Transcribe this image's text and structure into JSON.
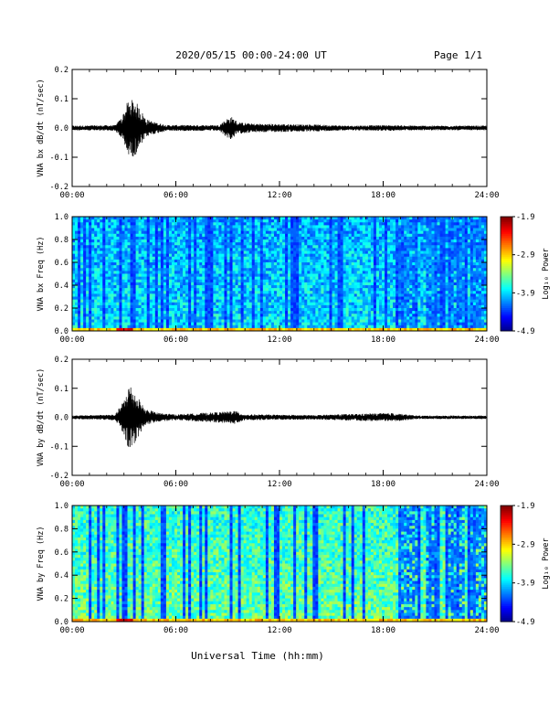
{
  "header": {
    "title": "2020/05/15  00:00-24:00 UT",
    "page": "Page 1/1"
  },
  "footer": {
    "xlabel": "Universal Time (hh:mm)"
  },
  "time_ticks": [
    "00:00",
    "06:00",
    "12:00",
    "18:00",
    "24:00"
  ],
  "colorbar": {
    "label": "Log₁₀ Power",
    "ticks": [
      "-1.9",
      "-2.9",
      "-3.9",
      "-4.9"
    ],
    "range": [
      -4.9,
      -1.9
    ]
  },
  "chart_data": [
    {
      "type": "line",
      "ylabel": "VNA bx dB/dt (nT/sec)",
      "xlim": [
        0,
        24
      ],
      "ylim": [
        -0.2,
        0.2
      ],
      "yticks": [
        "0.2",
        "0.1",
        "0.0",
        "-0.1",
        "-0.2"
      ],
      "envelope": [
        {
          "t": 0,
          "amp": 0.008
        },
        {
          "t": 2.5,
          "amp": 0.01
        },
        {
          "t": 2.9,
          "amp": 0.04
        },
        {
          "t": 3.2,
          "amp": 0.09
        },
        {
          "t": 3.6,
          "amp": 0.1
        },
        {
          "t": 3.9,
          "amp": 0.07
        },
        {
          "t": 4.3,
          "amp": 0.03
        },
        {
          "t": 4.8,
          "amp": 0.02
        },
        {
          "t": 5.5,
          "amp": 0.01
        },
        {
          "t": 8.5,
          "amp": 0.01
        },
        {
          "t": 8.9,
          "amp": 0.03
        },
        {
          "t": 9.2,
          "amp": 0.04
        },
        {
          "t": 9.6,
          "amp": 0.02
        },
        {
          "t": 10.5,
          "amp": 0.015
        },
        {
          "t": 14,
          "amp": 0.012
        },
        {
          "t": 16,
          "amp": 0.008
        },
        {
          "t": 18,
          "amp": 0.01
        },
        {
          "t": 20,
          "amp": 0.008
        },
        {
          "t": 24,
          "amp": 0.008
        }
      ]
    },
    {
      "type": "heatmap",
      "ylabel": "VNA bx Freq (Hz)",
      "xlim": [
        0,
        24
      ],
      "ylim": [
        0,
        1.0
      ],
      "yticks": [
        "1.0",
        "0.8",
        "0.6",
        "0.4",
        "0.2",
        "0.0"
      ],
      "zlim": [
        -4.9,
        -1.9
      ]
    },
    {
      "type": "line",
      "ylabel": "VNA by dB/dt (nT/sec)",
      "xlim": [
        0,
        24
      ],
      "ylim": [
        -0.2,
        0.2
      ],
      "yticks": [
        "0.2",
        "0.1",
        "0.0",
        "-0.1",
        "-0.2"
      ],
      "envelope": [
        {
          "t": 0,
          "amp": 0.006
        },
        {
          "t": 2.5,
          "amp": 0.01
        },
        {
          "t": 3.0,
          "amp": 0.06
        },
        {
          "t": 3.3,
          "amp": 0.12
        },
        {
          "t": 3.7,
          "amp": 0.08
        },
        {
          "t": 4.2,
          "amp": 0.03
        },
        {
          "t": 5,
          "amp": 0.015
        },
        {
          "t": 6,
          "amp": 0.01
        },
        {
          "t": 9.0,
          "amp": 0.02
        },
        {
          "t": 9.3,
          "amp": 0.025
        },
        {
          "t": 10,
          "amp": 0.01
        },
        {
          "t": 14,
          "amp": 0.008
        },
        {
          "t": 18.5,
          "amp": 0.015
        },
        {
          "t": 20,
          "amp": 0.006
        },
        {
          "t": 24,
          "amp": 0.006
        }
      ]
    },
    {
      "type": "heatmap",
      "ylabel": "VNA by Freq (Hz)",
      "xlim": [
        0,
        24
      ],
      "ylim": [
        0,
        1.0
      ],
      "yticks": [
        "1.0",
        "0.8",
        "0.6",
        "0.4",
        "0.2",
        "0.0"
      ],
      "zlim": [
        -4.9,
        -1.9
      ]
    }
  ]
}
